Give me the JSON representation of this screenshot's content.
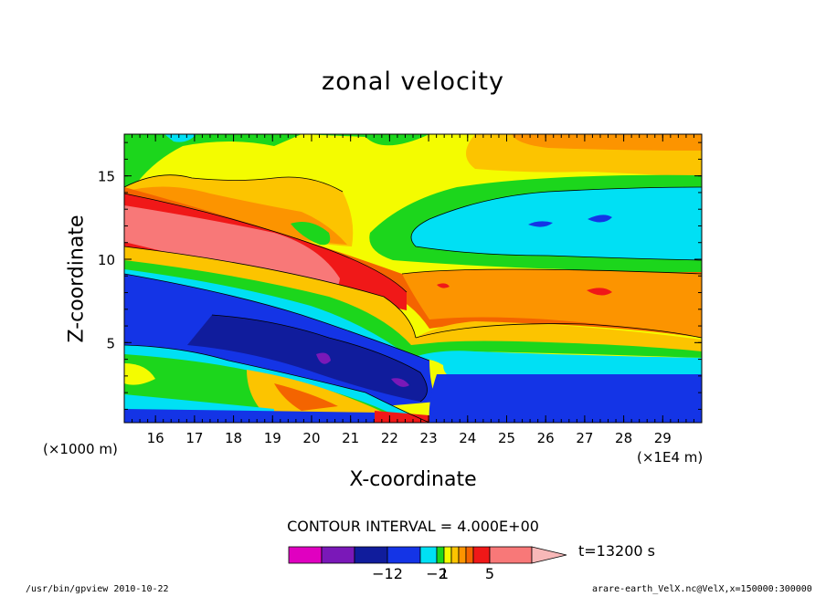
{
  "chart_data": {
    "type": "heatmap",
    "title": "zonal velocity",
    "xlabel": "X-coordinate",
    "ylabel": "Z-coordinate",
    "x_unit": "(×1E4 m)",
    "y_unit": "(×1000 m)",
    "xlim": [
      15.2,
      30.0
    ],
    "ylim": [
      0.2,
      17.5
    ],
    "x_ticks": [
      "16",
      "17",
      "18",
      "19",
      "20",
      "21",
      "22",
      "23",
      "24",
      "25",
      "26",
      "27",
      "28",
      "29"
    ],
    "y_ticks": [
      "5",
      "10",
      "15"
    ],
    "contour_interval": "CONTOUR INTERVAL = 4.000E+00",
    "colorbar_labels": [
      "−12",
      "−2",
      "1",
      "5"
    ],
    "time_label": "t=13200 s",
    "colors": {
      "magenta": "#e000c0",
      "purple": "#7a18b8",
      "navy": "#101c9c",
      "blue": "#1434e6",
      "cyan": "#00e0f4",
      "green": "#1cd61c",
      "yellow": "#f4fc00",
      "lightorange": "#fcc400",
      "orange": "#fc9400",
      "darkorange": "#f46400",
      "red": "#f01818",
      "salmon": "#f87878",
      "pink": "#f8b8b8"
    }
  },
  "footer": {
    "left": "/usr/bin/gpview  2010-10-22",
    "right": "arare-earth_VelX.nc@VelX,x=150000:300000"
  }
}
